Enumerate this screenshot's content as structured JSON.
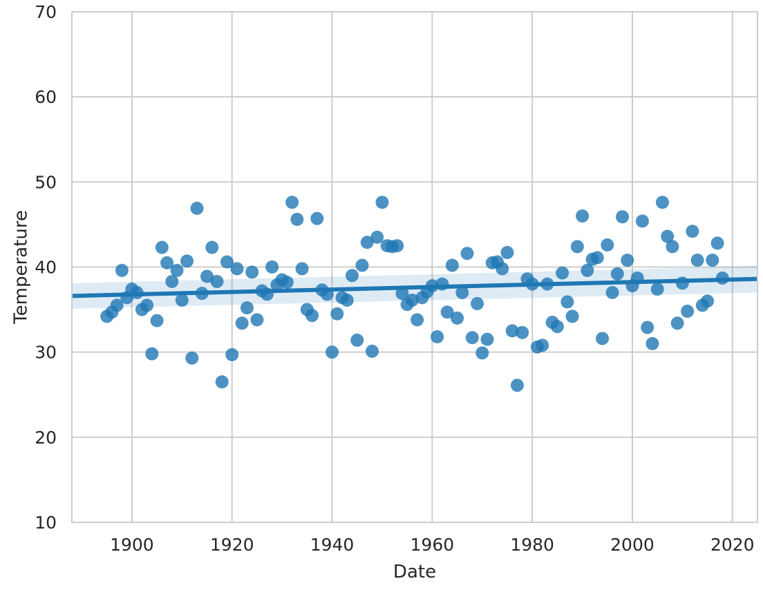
{
  "chart_data": {
    "type": "scatter",
    "title": "",
    "xlabel": "Date",
    "ylabel": "Temperature",
    "xlim": [
      1888,
      2025
    ],
    "ylim": [
      10,
      70
    ],
    "xticks": [
      "1900",
      "1920",
      "1940",
      "1960",
      "1980",
      "2000",
      "2020"
    ],
    "yticks": [
      "10",
      "20",
      "30",
      "40",
      "50",
      "60",
      "70"
    ],
    "grid": true,
    "colors": {
      "points": "#1f77b4",
      "line": "#1f77b4",
      "band": "#1f77b4",
      "grid": "#cccccc",
      "spine": "#cccccc"
    },
    "regression": {
      "x": [
        1888,
        2025
      ],
      "y": [
        36.6,
        38.6
      ],
      "ci_lower": [
        35.1,
        37.0
      ],
      "ci_upper": [
        38.1,
        40.1
      ]
    },
    "x": [
      1895,
      1896,
      1897,
      1898,
      1899,
      1900,
      1901,
      1902,
      1903,
      1904,
      1905,
      1906,
      1907,
      1908,
      1909,
      1910,
      1911,
      1912,
      1913,
      1914,
      1915,
      1916,
      1917,
      1918,
      1919,
      1920,
      1921,
      1922,
      1923,
      1924,
      1925,
      1926,
      1927,
      1928,
      1929,
      1930,
      1931,
      1932,
      1933,
      1934,
      1935,
      1936,
      1937,
      1938,
      1939,
      1940,
      1941,
      1942,
      1943,
      1944,
      1945,
      1946,
      1947,
      1948,
      1949,
      1950,
      1951,
      1952,
      1953,
      1954,
      1955,
      1956,
      1957,
      1958,
      1959,
      1960,
      1961,
      1962,
      1963,
      1964,
      1965,
      1966,
      1967,
      1968,
      1969,
      1970,
      1971,
      1972,
      1973,
      1974,
      1975,
      1976,
      1977,
      1978,
      1979,
      1980,
      1981,
      1982,
      1983,
      1984,
      1985,
      1986,
      1987,
      1988,
      1989,
      1990,
      1991,
      1992,
      1993,
      1994,
      1995,
      1996,
      1997,
      1998,
      1999,
      2000,
      2001,
      2002,
      2003,
      2004,
      2005,
      2006,
      2007,
      2008,
      2009,
      2010,
      2011,
      2012,
      2013,
      2014,
      2015,
      2016,
      2017,
      2018
    ],
    "y": [
      34.2,
      34.7,
      35.5,
      39.6,
      36.4,
      37.4,
      37.0,
      35.0,
      35.5,
      29.8,
      33.7,
      42.3,
      40.5,
      38.3,
      39.6,
      36.1,
      40.7,
      29.3,
      46.9,
      36.9,
      38.9,
      42.3,
      38.3,
      26.5,
      40.6,
      29.7,
      39.8,
      33.4,
      35.2,
      39.4,
      33.8,
      37.2,
      36.8,
      40.0,
      37.9,
      38.5,
      38.2,
      47.6,
      45.6,
      39.8,
      35.0,
      34.3,
      45.7,
      37.3,
      36.8,
      30.0,
      34.5,
      36.4,
      36.1,
      39.0,
      31.4,
      40.2,
      42.9,
      30.1,
      43.5,
      47.6,
      42.5,
      42.4,
      42.5,
      36.9,
      35.6,
      36.1,
      33.8,
      36.4,
      37.1,
      37.8,
      31.8,
      38.0,
      34.7,
      40.2,
      34.0,
      37.0,
      41.6,
      31.7,
      35.7,
      29.9,
      31.5,
      40.5,
      40.6,
      39.8,
      41.7,
      32.5,
      26.1,
      32.3,
      38.6,
      38.0,
      30.6,
      30.8,
      38.0,
      33.5,
      33.0,
      39.3,
      35.9,
      34.2,
      42.4,
      46.0,
      39.6,
      40.9,
      41.1,
      31.6,
      42.6,
      37.0,
      39.2,
      45.9,
      40.8,
      37.8,
      38.7,
      45.4,
      32.9,
      31.0,
      37.4,
      47.6,
      43.6,
      42.4,
      33.4,
      38.1,
      34.8,
      44.2,
      40.8,
      35.5,
      36.0,
      40.8,
      42.8,
      38.7
    ]
  }
}
